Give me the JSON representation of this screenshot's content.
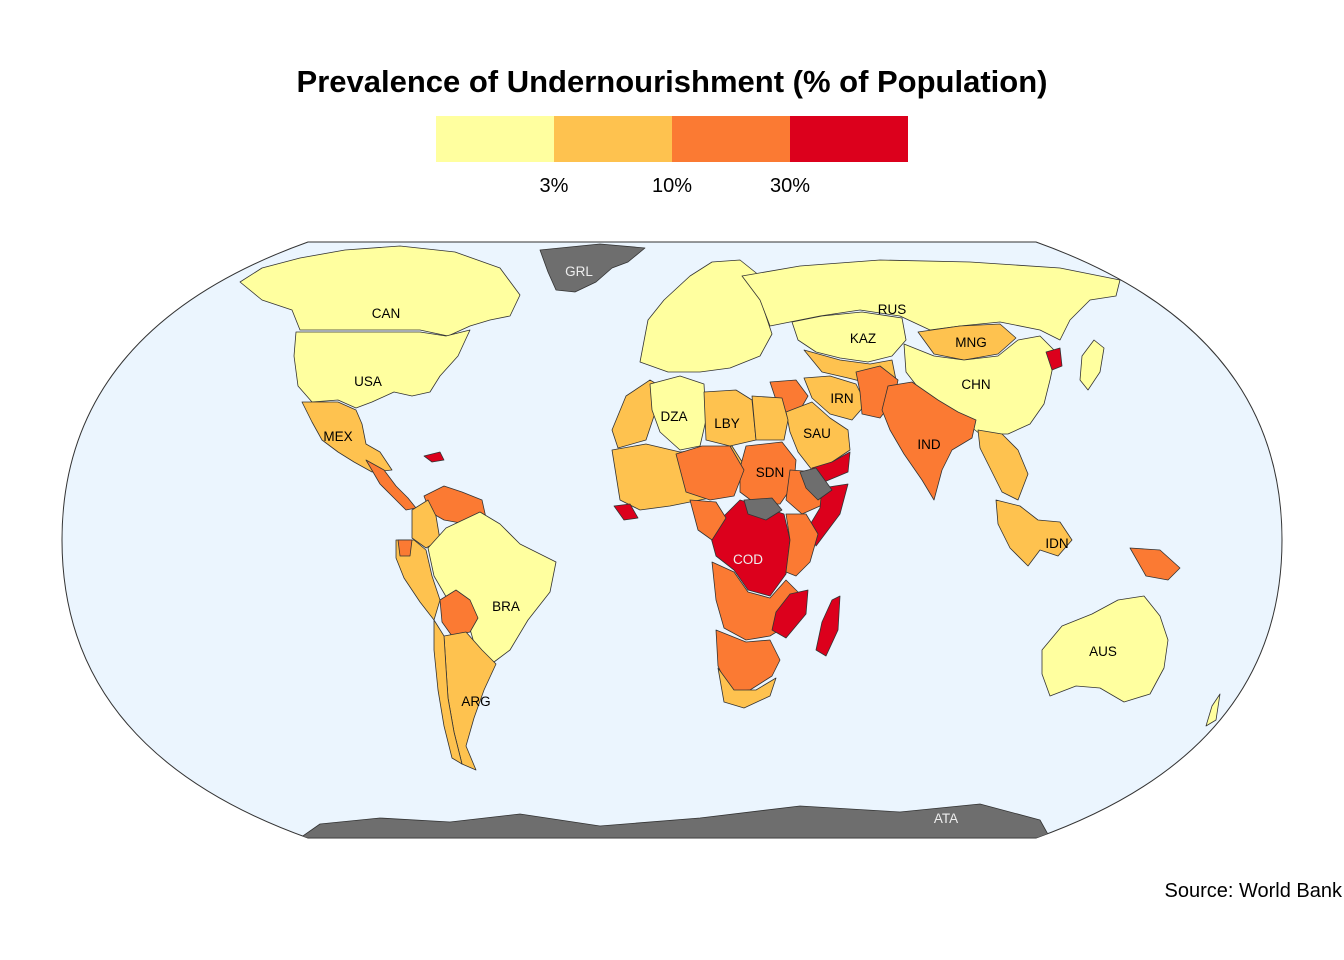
{
  "title": "Prevalence of Undernourishment (% of Population)",
  "legend": {
    "colors": [
      "#ffff9f",
      "#fec24f",
      "#fb7a33",
      "#dc001c"
    ],
    "breaks": [
      "3%",
      "10%",
      "30%"
    ]
  },
  "source": "Source: World Bank",
  "colors": {
    "ocean": "#ebf5fe",
    "no_data": "#6e6e6e",
    "border": "#333333"
  },
  "labels": {
    "GRL": "GRL",
    "CAN": "CAN",
    "USA": "USA",
    "MEX": "MEX",
    "BRA": "BRA",
    "ARG": "ARG",
    "DZA": "DZA",
    "LBY": "LBY",
    "SDN": "SDN",
    "COD": "COD",
    "SAU": "SAU",
    "IRN": "IRN",
    "KAZ": "KAZ",
    "RUS": "RUS",
    "MNG": "MNG",
    "CHN": "CHN",
    "IND": "IND",
    "IDN": "IDN",
    "AUS": "AUS",
    "ATA": "ATA"
  },
  "countries": [
    {
      "code": "GRL",
      "class": "no data"
    },
    {
      "code": "CAN",
      "class": "< 3%"
    },
    {
      "code": "USA",
      "class": "< 3%"
    },
    {
      "code": "MEX",
      "class": "3% - 10%"
    },
    {
      "code": "BRA",
      "class": "< 3%"
    },
    {
      "code": "ARG",
      "class": "3% - 10%"
    },
    {
      "code": "DZA",
      "class": "< 3%"
    },
    {
      "code": "LBY",
      "class": "3% - 10%"
    },
    {
      "code": "SDN",
      "class": "10% - 30%"
    },
    {
      "code": "COD",
      "class": "> 30%"
    },
    {
      "code": "SAU",
      "class": "3% - 10%"
    },
    {
      "code": "IRN",
      "class": "3% - 10%"
    },
    {
      "code": "KAZ",
      "class": "< 3%"
    },
    {
      "code": "RUS",
      "class": "< 3%"
    },
    {
      "code": "MNG",
      "class": "3% - 10%"
    },
    {
      "code": "CHN",
      "class": "< 3%"
    },
    {
      "code": "IND",
      "class": "10% - 30%"
    },
    {
      "code": "IDN",
      "class": "3% - 10%"
    },
    {
      "code": "AUS",
      "class": "< 3%"
    },
    {
      "code": "ATA",
      "class": "no data"
    }
  ]
}
